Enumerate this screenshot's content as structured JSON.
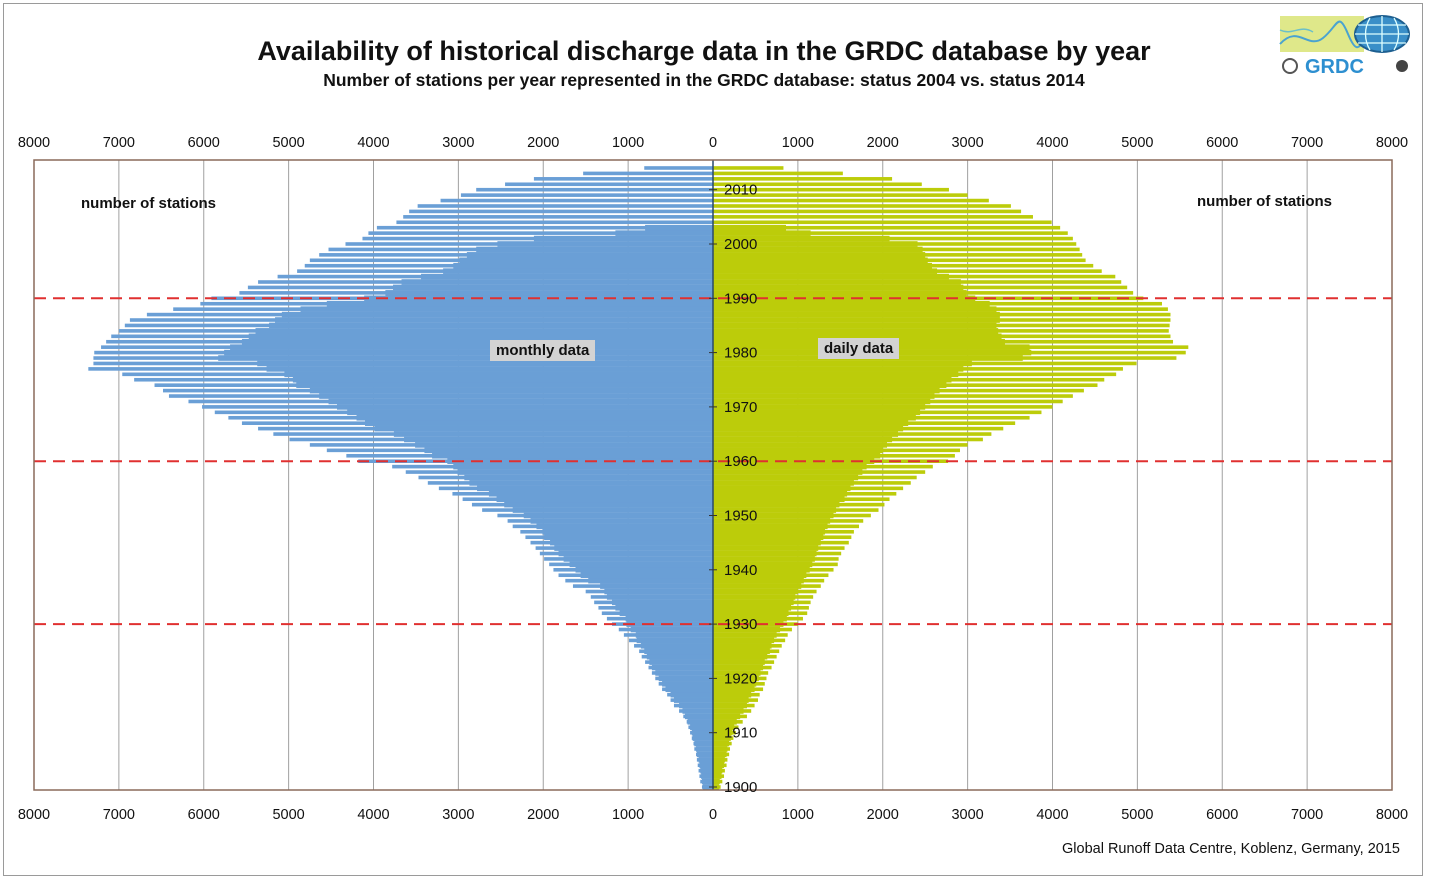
{
  "title": "Availability of historical discharge data in the GRDC database by year",
  "subtitle": "Number of stations per year represented in the GRDC database: status 2004 vs. status 2014",
  "footer": "Global Runoff Data Centre, Koblenz, Germany, 2015",
  "logo": {
    "text": "GRDC"
  },
  "colors": {
    "monthly": "#6a9fd6",
    "daily": "#bccc0a",
    "reference_lines": "#e03030",
    "grid": "#a0a0a0",
    "frame": "#8a6a5a"
  },
  "chart_data": {
    "type": "bar",
    "orientation": "horizontal-back-to-back",
    "left_axis_label": "number of stations",
    "right_axis_label": "number of stations",
    "left_panel_label": "monthly data",
    "right_panel_label": "daily data",
    "x_ticks": [
      "8000",
      "7000",
      "6000",
      "5000",
      "4000",
      "3000",
      "2000",
      "1000",
      "0",
      "1000",
      "2000",
      "3000",
      "4000",
      "5000",
      "6000",
      "7000",
      "8000"
    ],
    "xlim": [
      0,
      8000
    ],
    "y_ticks": [
      "1900",
      "1910",
      "1920",
      "1930",
      "1940",
      "1950",
      "1960",
      "1970",
      "1980",
      "1990",
      "2000",
      "2010"
    ],
    "ylim": [
      1900,
      2014
    ],
    "reference_lines_years": [
      1930,
      1960,
      1990
    ],
    "grid": true,
    "years_2014": [
      1900,
      2014
    ],
    "years_2004": [
      1900,
      2003
    ],
    "monthly_2014": [
      130,
      150,
      160,
      170,
      180,
      190,
      200,
      220,
      230,
      250,
      270,
      290,
      310,
      350,
      400,
      460,
      500,
      540,
      600,
      640,
      680,
      720,
      760,
      800,
      840,
      870,
      930,
      990,
      1050,
      1110,
      1190,
      1250,
      1310,
      1350,
      1400,
      1440,
      1500,
      1650,
      1740,
      1820,
      1880,
      1930,
      1990,
      2040,
      2090,
      2150,
      2210,
      2270,
      2360,
      2420,
      2540,
      2720,
      2840,
      2950,
      3070,
      3230,
      3360,
      3470,
      3620,
      3780,
      4180,
      4320,
      4550,
      4750,
      4990,
      5180,
      5360,
      5550,
      5710,
      5870,
      6020,
      6180,
      6410,
      6480,
      6580,
      6820,
      6960,
      7360,
      7300,
      7300,
      7290,
      7210,
      7150,
      7090,
      7000,
      6930,
      6870,
      6670,
      6360,
      6040,
      5910,
      5580,
      5480,
      5360,
      5130,
      4900,
      4810,
      4750,
      4640,
      4530,
      4330,
      4130,
      4060,
      3960,
      3730,
      3650,
      3580,
      3480,
      3210,
      2970,
      2790,
      2450,
      2110,
      1530,
      810
    ],
    "monthly_2004": [
      120,
      130,
      140,
      150,
      160,
      170,
      190,
      200,
      220,
      240,
      250,
      270,
      300,
      330,
      360,
      400,
      460,
      500,
      560,
      600,
      640,
      680,
      720,
      750,
      780,
      810,
      850,
      900,
      910,
      970,
      1020,
      1030,
      1100,
      1150,
      1190,
      1250,
      1280,
      1330,
      1470,
      1560,
      1620,
      1690,
      1760,
      1820,
      1870,
      1920,
      1990,
      2010,
      2080,
      2150,
      2230,
      2360,
      2460,
      2550,
      2640,
      2780,
      2870,
      2930,
      3010,
      3060,
      3130,
      3310,
      3400,
      3510,
      3640,
      3760,
      3990,
      4100,
      4200,
      4310,
      4430,
      4530,
      4640,
      4750,
      4910,
      4950,
      5050,
      5260,
      5370,
      5830,
      5760,
      5690,
      5550,
      5470,
      5390,
      5230,
      5160,
      5080,
      4860,
      4550,
      4110,
      3860,
      3770,
      3670,
      3440,
      3180,
      3060,
      2990,
      2900,
      2790,
      2540,
      2110,
      1150,
      800
    ],
    "daily_2014": [
      90,
      110,
      130,
      140,
      160,
      170,
      190,
      200,
      220,
      240,
      270,
      300,
      350,
      400,
      450,
      490,
      530,
      550,
      590,
      610,
      630,
      650,
      690,
      720,
      750,
      780,
      810,
      850,
      880,
      930,
      1000,
      1060,
      1110,
      1130,
      1150,
      1180,
      1220,
      1270,
      1310,
      1360,
      1420,
      1470,
      1480,
      1510,
      1550,
      1600,
      1630,
      1660,
      1720,
      1770,
      1860,
      1950,
      2020,
      2080,
      2160,
      2240,
      2330,
      2400,
      2500,
      2590,
      2770,
      2850,
      2910,
      3000,
      3180,
      3280,
      3420,
      3560,
      3730,
      3870,
      4000,
      4120,
      4240,
      4370,
      4530,
      4610,
      4750,
      4830,
      4990,
      5460,
      5570,
      5600,
      5420,
      5390,
      5370,
      5380,
      5390,
      5390,
      5360,
      5290,
      5070,
      4950,
      4880,
      4810,
      4740,
      4580,
      4480,
      4390,
      4350,
      4320,
      4280,
      4240,
      4180,
      4090,
      3990,
      3770,
      3630,
      3510,
      3250,
      3000,
      2780,
      2460,
      2110,
      1530,
      830
    ],
    "daily_2004": [
      70,
      80,
      100,
      110,
      130,
      140,
      160,
      170,
      190,
      210,
      230,
      250,
      280,
      320,
      360,
      400,
      420,
      450,
      490,
      510,
      540,
      560,
      590,
      610,
      640,
      670,
      690,
      720,
      750,
      790,
      830,
      870,
      890,
      920,
      950,
      970,
      1000,
      1040,
      1070,
      1100,
      1140,
      1170,
      1200,
      1220,
      1240,
      1270,
      1300,
      1320,
      1350,
      1380,
      1420,
      1450,
      1490,
      1550,
      1580,
      1620,
      1660,
      1710,
      1760,
      1810,
      1900,
      1970,
      2000,
      2050,
      2110,
      2180,
      2240,
      2300,
      2390,
      2440,
      2500,
      2560,
      2610,
      2670,
      2750,
      2810,
      2890,
      2950,
      3050,
      3650,
      3750,
      3730,
      3440,
      3400,
      3360,
      3340,
      3380,
      3380,
      3340,
      3260,
      3090,
      2990,
      2950,
      2920,
      2780,
      2640,
      2580,
      2530,
      2500,
      2470,
      2410,
      2080,
      1150,
      860
    ]
  }
}
